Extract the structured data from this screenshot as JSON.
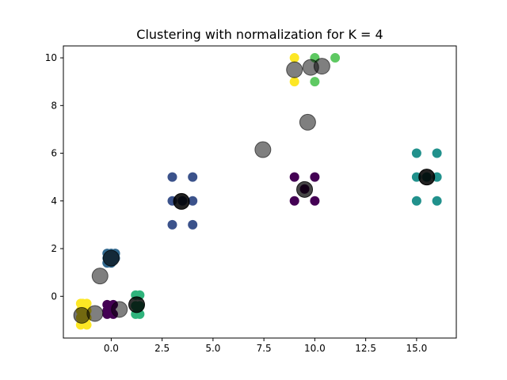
{
  "chart_data": {
    "type": "scatter",
    "title": "Clustering with normalization for K = 4",
    "xlabel": "",
    "ylabel": "",
    "xlim": [
      -2.35,
      16.95
    ],
    "ylim": [
      -1.75,
      10.5
    ],
    "xticks": [
      0.0,
      2.5,
      5.0,
      7.5,
      10.0,
      12.5,
      15.0
    ],
    "xtick_labels": [
      "0.0",
      "2.5",
      "5.0",
      "7.5",
      "10.0",
      "12.5",
      "15.0"
    ],
    "yticks": [
      0,
      2,
      4,
      6,
      8,
      10
    ],
    "ytick_labels": [
      "0",
      "2",
      "4",
      "6",
      "8",
      "10"
    ],
    "grid": false,
    "legend": "none",
    "colors": {
      "c_purple": "#440154",
      "c_blue": "#3b528b",
      "c_teal": "#21918c",
      "c_green": "#2fb47c",
      "c_lime": "#5ec962",
      "c_yellow": "#fde725",
      "c_steel": "#31688e",
      "centroid": "#000000"
    },
    "points": [
      {
        "x": 9.0,
        "y": 5.0,
        "c": "c_purple"
      },
      {
        "x": 10.0,
        "y": 5.0,
        "c": "c_purple"
      },
      {
        "x": 9.0,
        "y": 4.0,
        "c": "c_purple"
      },
      {
        "x": 10.0,
        "y": 4.0,
        "c": "c_purple"
      },
      {
        "x": 9.5,
        "y": 4.5,
        "c": "c_purple"
      },
      {
        "x": 3.0,
        "y": 5.0,
        "c": "c_blue"
      },
      {
        "x": 4.0,
        "y": 5.0,
        "c": "c_blue"
      },
      {
        "x": 3.0,
        "y": 4.0,
        "c": "c_blue"
      },
      {
        "x": 4.0,
        "y": 4.0,
        "c": "c_blue"
      },
      {
        "x": 3.0,
        "y": 3.0,
        "c": "c_blue"
      },
      {
        "x": 4.0,
        "y": 3.0,
        "c": "c_blue"
      },
      {
        "x": 3.5,
        "y": 4.0,
        "c": "c_blue"
      },
      {
        "x": 15.0,
        "y": 6.0,
        "c": "c_teal"
      },
      {
        "x": 16.0,
        "y": 6.0,
        "c": "c_teal"
      },
      {
        "x": 15.0,
        "y": 5.0,
        "c": "c_teal"
      },
      {
        "x": 16.0,
        "y": 5.0,
        "c": "c_teal"
      },
      {
        "x": 15.0,
        "y": 4.0,
        "c": "c_teal"
      },
      {
        "x": 16.0,
        "y": 4.0,
        "c": "c_teal"
      },
      {
        "x": 15.5,
        "y": 5.0,
        "c": "c_teal"
      },
      {
        "x": 9.0,
        "y": 10.0,
        "c": "c_yellow"
      },
      {
        "x": 9.0,
        "y": 9.0,
        "c": "c_yellow"
      },
      {
        "x": 10.0,
        "y": 10.0,
        "c": "c_lime"
      },
      {
        "x": 11.0,
        "y": 10.0,
        "c": "c_lime"
      },
      {
        "x": 10.0,
        "y": 9.0,
        "c": "c_lime"
      },
      {
        "x": -0.2,
        "y": 1.8,
        "c": "c_steel"
      },
      {
        "x": 0.0,
        "y": 1.8,
        "c": "c_steel"
      },
      {
        "x": 0.2,
        "y": 1.8,
        "c": "c_steel"
      },
      {
        "x": -0.2,
        "y": 1.6,
        "c": "c_steel"
      },
      {
        "x": 0.0,
        "y": 1.6,
        "c": "c_steel"
      },
      {
        "x": 0.2,
        "y": 1.6,
        "c": "c_steel"
      },
      {
        "x": -0.2,
        "y": 1.4,
        "c": "c_steel"
      },
      {
        "x": 0.0,
        "y": 1.4,
        "c": "c_steel"
      },
      {
        "x": 0.1,
        "y": 1.5,
        "c": "c_steel"
      },
      {
        "x": -1.5,
        "y": -0.3,
        "c": "c_yellow"
      },
      {
        "x": -1.4,
        "y": -0.3,
        "c": "c_yellow"
      },
      {
        "x": -1.2,
        "y": -0.3,
        "c": "c_yellow"
      },
      {
        "x": -1.5,
        "y": -0.6,
        "c": "c_yellow"
      },
      {
        "x": -1.2,
        "y": -0.6,
        "c": "c_yellow"
      },
      {
        "x": -1.5,
        "y": -0.9,
        "c": "c_yellow"
      },
      {
        "x": -1.2,
        "y": -0.9,
        "c": "c_yellow"
      },
      {
        "x": -1.5,
        "y": -1.2,
        "c": "c_yellow"
      },
      {
        "x": -1.2,
        "y": -1.2,
        "c": "c_yellow"
      },
      {
        "x": -0.2,
        "y": -0.35,
        "c": "c_purple"
      },
      {
        "x": 0.1,
        "y": -0.35,
        "c": "c_purple"
      },
      {
        "x": -0.2,
        "y": -0.6,
        "c": "c_purple"
      },
      {
        "x": 0.0,
        "y": -0.6,
        "c": "c_purple"
      },
      {
        "x": -0.2,
        "y": -0.75,
        "c": "c_purple"
      },
      {
        "x": 0.1,
        "y": -0.75,
        "c": "c_purple"
      },
      {
        "x": 1.2,
        "y": 0.05,
        "c": "c_green"
      },
      {
        "x": 1.4,
        "y": 0.05,
        "c": "c_green"
      },
      {
        "x": 1.2,
        "y": -0.4,
        "c": "c_green"
      },
      {
        "x": 1.4,
        "y": -0.4,
        "c": "c_green"
      },
      {
        "x": 1.2,
        "y": -0.75,
        "c": "c_green"
      },
      {
        "x": 1.4,
        "y": -0.75,
        "c": "c_green"
      }
    ],
    "centroids": [
      {
        "x": 3.45,
        "y": 3.98,
        "alpha": 0.87
      },
      {
        "x": 9.5,
        "y": 4.48,
        "alpha": 0.72
      },
      {
        "x": 15.5,
        "y": 5.0,
        "alpha": 0.87
      },
      {
        "x": 7.45,
        "y": 6.15,
        "alpha": 0.5
      },
      {
        "x": 9.65,
        "y": 7.3,
        "alpha": 0.5
      },
      {
        "x": 9.0,
        "y": 9.5,
        "alpha": 0.5
      },
      {
        "x": 9.8,
        "y": 9.6,
        "alpha": 0.5
      },
      {
        "x": 10.35,
        "y": 9.65,
        "alpha": 0.5
      },
      {
        "x": 0.0,
        "y": 1.6,
        "alpha": 0.6
      },
      {
        "x": -0.55,
        "y": 0.85,
        "alpha": 0.5
      },
      {
        "x": -0.8,
        "y": -0.72,
        "alpha": 0.5
      },
      {
        "x": 0.4,
        "y": -0.55,
        "alpha": 0.5
      },
      {
        "x": 1.25,
        "y": -0.35,
        "alpha": 0.8
      },
      {
        "x": -1.45,
        "y": -0.8,
        "alpha": 0.55
      }
    ]
  }
}
